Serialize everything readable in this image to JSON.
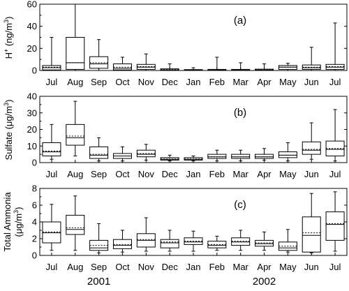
{
  "chart_data": [
    {
      "type": "box",
      "panel_label": "(a)",
      "ylabel_parts": [
        "H",
        "+",
        " (ng/m",
        "3",
        ")"
      ],
      "ylim": [
        0,
        60
      ],
      "yticks": [
        0,
        20,
        40,
        60
      ],
      "categories": [
        "Jul",
        "Aug",
        "Sep",
        "Oct",
        "Nov",
        "Dec",
        "Jan",
        "Feb",
        "Mar",
        "Apr",
        "May",
        "Jun",
        "Jul"
      ],
      "boxes": [
        {
          "min": 0,
          "q1": 0.5,
          "median": 2.5,
          "mean": 3,
          "q3": 4.5,
          "max": 30
        },
        {
          "min": 0,
          "q1": 1,
          "median": 7,
          "mean": 7,
          "q3": 30,
          "max": 60
        },
        {
          "min": 0,
          "q1": 2,
          "median": 6,
          "mean": 7,
          "q3": 12.5,
          "max": 28
        },
        {
          "min": 0,
          "q1": 0.5,
          "median": 2,
          "mean": 3,
          "q3": 6,
          "max": 12
        },
        {
          "min": 0,
          "q1": 1,
          "median": 3,
          "mean": 3.5,
          "q3": 5.5,
          "max": 15
        },
        {
          "min": 0,
          "q1": 0,
          "median": 0.5,
          "mean": 0.8,
          "q3": 1.5,
          "max": 6
        },
        {
          "min": 0,
          "q1": 0,
          "median": 0.3,
          "mean": 0.4,
          "q3": 0.8,
          "max": 2.5
        },
        {
          "min": 0,
          "q1": 0,
          "median": 0.3,
          "mean": 0.5,
          "q3": 1,
          "max": 12
        },
        {
          "min": 0,
          "q1": 0,
          "median": 0.3,
          "mean": 0.4,
          "q3": 1,
          "max": 7
        },
        {
          "min": 0,
          "q1": 0,
          "median": 0.4,
          "mean": 0.6,
          "q3": 1.2,
          "max": 6
        },
        {
          "min": 0,
          "q1": 1,
          "median": 3,
          "mean": 3,
          "q3": 4.5,
          "max": 6.5
        },
        {
          "min": 0,
          "q1": 1,
          "median": 2.5,
          "mean": 3,
          "q3": 5,
          "max": 21
        },
        {
          "min": 0,
          "q1": 1,
          "median": 3,
          "mean": 3.5,
          "q3": 5.5,
          "max": 43
        }
      ]
    },
    {
      "type": "box",
      "panel_label": "(b)",
      "ylabel_parts": [
        "Sulfate (",
        "μ",
        "g/m",
        "3",
        ")"
      ],
      "ylim": [
        0,
        40
      ],
      "yticks": [
        0,
        10,
        20,
        30,
        40
      ],
      "categories": [
        "Jul",
        "Aug",
        "Sep",
        "Oct",
        "Nov",
        "Dec",
        "Jan",
        "Feb",
        "Mar",
        "Apr",
        "May",
        "Jun",
        "Jul"
      ],
      "boxes": [
        {
          "min": 2,
          "q1": 4,
          "median": 6.5,
          "mean": 7,
          "q3": 12,
          "max": 23
        },
        {
          "min": 4,
          "q1": 10.5,
          "median": 15,
          "mean": 16,
          "q3": 23,
          "max": 37
        },
        {
          "min": 1,
          "q1": 2.5,
          "median": 4.5,
          "mean": 5,
          "q3": 9.5,
          "max": 15
        },
        {
          "min": 1,
          "q1": 2.5,
          "median": 4,
          "mean": 4,
          "q3": 5.5,
          "max": 9.5
        },
        {
          "min": 1.5,
          "q1": 3.5,
          "median": 5,
          "mean": 5.5,
          "q3": 7.5,
          "max": 11
        },
        {
          "min": 1,
          "q1": 1.5,
          "median": 2,
          "mean": 2.2,
          "q3": 3,
          "max": 4.5
        },
        {
          "min": 1,
          "q1": 1.5,
          "median": 2,
          "mean": 2.2,
          "q3": 3,
          "max": 4
        },
        {
          "min": 1,
          "q1": 2.5,
          "median": 3.5,
          "mean": 3.5,
          "q3": 5,
          "max": 7.5
        },
        {
          "min": 1,
          "q1": 2.5,
          "median": 3.5,
          "mean": 3.5,
          "q3": 5,
          "max": 7.5
        },
        {
          "min": 1.5,
          "q1": 2.5,
          "median": 3.5,
          "mean": 3.5,
          "q3": 5,
          "max": 8.5
        },
        {
          "min": 1,
          "q1": 3,
          "median": 4.5,
          "mean": 4.5,
          "q3": 6.5,
          "max": 12
        },
        {
          "min": 2,
          "q1": 5,
          "median": 7.5,
          "mean": 8,
          "q3": 12.5,
          "max": 24
        },
        {
          "min": 1,
          "q1": 4,
          "median": 8,
          "mean": 8.5,
          "q3": 13,
          "max": 32
        }
      ]
    },
    {
      "type": "box",
      "panel_label": "(c)",
      "ylabel_parts": [
        "Total Ammonia",
        "(",
        "μ",
        "g/m",
        "3",
        ")"
      ],
      "ylim": [
        0,
        8
      ],
      "yticks": [
        0,
        2,
        4,
        6,
        8
      ],
      "categories": [
        "Jul",
        "Aug",
        "Sep",
        "Oct",
        "Nov",
        "Dec",
        "Jan",
        "Feb",
        "Mar",
        "Apr",
        "May",
        "Jun",
        "Jul"
      ],
      "boxes": [
        {
          "min": 0.6,
          "q1": 1.5,
          "median": 2.7,
          "mean": 2.8,
          "q3": 4,
          "max": 6.1
        },
        {
          "min": 0.6,
          "q1": 2.5,
          "median": 3.1,
          "mean": 3.3,
          "q3": 4.8,
          "max": 7.1
        },
        {
          "min": 0.3,
          "q1": 0.6,
          "median": 0.9,
          "mean": 1.2,
          "q3": 1.8,
          "max": 3.8
        },
        {
          "min": 0.4,
          "q1": 0.8,
          "median": 1.2,
          "mean": 1.3,
          "q3": 1.9,
          "max": 3.0
        },
        {
          "min": 0.5,
          "q1": 1.0,
          "median": 1.8,
          "mean": 1.9,
          "q3": 2.6,
          "max": 4.5
        },
        {
          "min": 0.5,
          "q1": 0.9,
          "median": 1.5,
          "mean": 1.6,
          "q3": 1.9,
          "max": 3.0
        },
        {
          "min": 0.5,
          "q1": 1.3,
          "median": 1.6,
          "mean": 1.7,
          "q3": 2.1,
          "max": 2.9
        },
        {
          "min": 0.6,
          "q1": 0.9,
          "median": 1.2,
          "mean": 1.3,
          "q3": 1.7,
          "max": 2.3
        },
        {
          "min": 0.6,
          "q1": 1.2,
          "median": 1.6,
          "mean": 1.7,
          "q3": 2.1,
          "max": 3.0
        },
        {
          "min": 0.6,
          "q1": 1.1,
          "median": 1.4,
          "mean": 1.5,
          "q3": 1.8,
          "max": 2.8
        },
        {
          "min": 0.4,
          "q1": 0.6,
          "median": 0.9,
          "mean": 1.1,
          "q3": 1.6,
          "max": 3.1
        },
        {
          "min": 0.3,
          "q1": 0.4,
          "median": 2.4,
          "mean": 2.7,
          "q3": 4.6,
          "max": 7.4
        },
        {
          "min": 0.5,
          "q1": 1.8,
          "median": 3.7,
          "mean": 3.8,
          "q3": 5.2,
          "max": 7.6
        }
      ]
    }
  ],
  "years": [
    {
      "label": "2001",
      "anchor_category": 2
    },
    {
      "label": "2002",
      "anchor_category": 9
    }
  ]
}
